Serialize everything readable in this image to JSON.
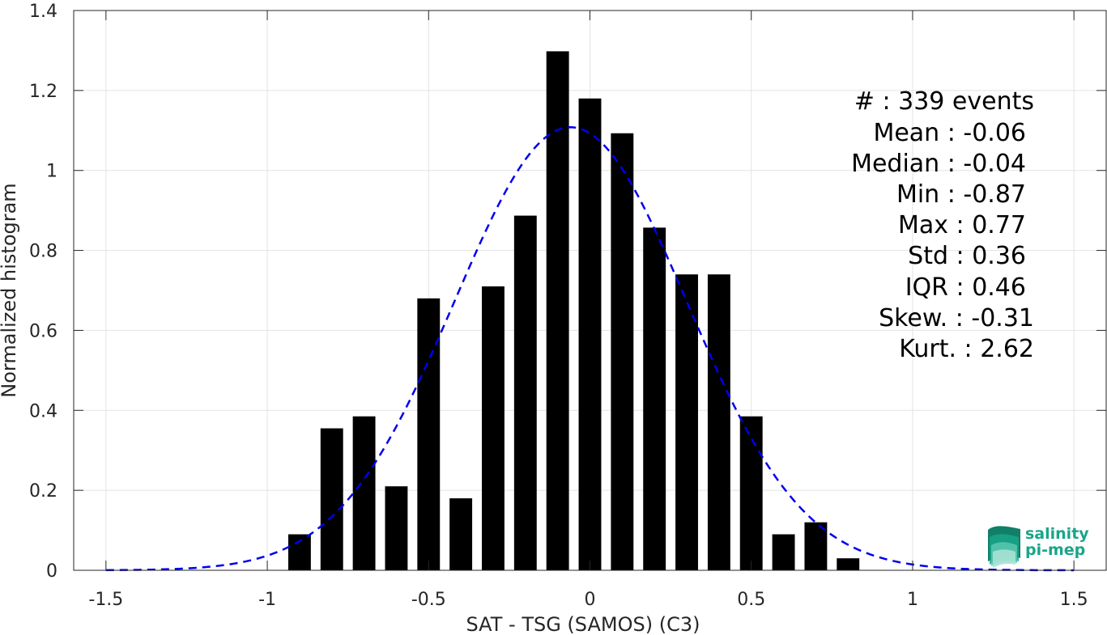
{
  "chart_data": {
    "type": "bar",
    "xlabel": "SAT - TSG (SAMOS) (C3)",
    "ylabel": "Normalized histogram",
    "xlim": [
      -1.6,
      1.6
    ],
    "ylim": [
      0,
      1.4
    ],
    "xticks": [
      -1.5,
      -1,
      -0.5,
      0,
      0.5,
      1,
      1.5
    ],
    "xtick_labels": [
      "-1.5",
      "-1",
      "-0.5",
      "0",
      "0.5",
      "1",
      "1.5"
    ],
    "yticks": [
      0,
      0.2,
      0.4,
      0.6,
      0.8,
      1,
      1.2,
      1.4
    ],
    "ytick_labels": [
      "0",
      "0.2",
      "0.4",
      "0.6",
      "0.8",
      "1",
      "1.2",
      "1.4"
    ],
    "grid": true,
    "bar_color": "#000000",
    "bars": {
      "x": [
        -0.9,
        -0.8,
        -0.7,
        -0.6,
        -0.5,
        -0.4,
        -0.3,
        -0.2,
        -0.1,
        0.0,
        0.1,
        0.2,
        0.3,
        0.4,
        0.5,
        0.6,
        0.7,
        0.8
      ],
      "values": [
        0.09,
        0.355,
        0.385,
        0.21,
        0.68,
        0.18,
        0.71,
        0.887,
        1.298,
        1.18,
        1.093,
        0.857,
        0.74,
        0.74,
        0.385,
        0.09,
        0.12,
        0.03
      ]
    },
    "fit_curve": {
      "style": "dashed",
      "color": "#0000ee",
      "mean": -0.06,
      "std": 0.36,
      "x_range": [
        -1.5,
        1.5
      ]
    },
    "annotations": [
      "#  : 339 events",
      "Mean : -0.06",
      "Median : -0.04",
      "Min : -0.87",
      "Max : 0.77",
      "Std : 0.36",
      "IQR : 0.46",
      "Skew. : -0.31",
      "Kurt. : 2.62"
    ]
  },
  "logo": {
    "line1": "salinity",
    "line2": "pi-mep",
    "color": "#1aa589"
  }
}
